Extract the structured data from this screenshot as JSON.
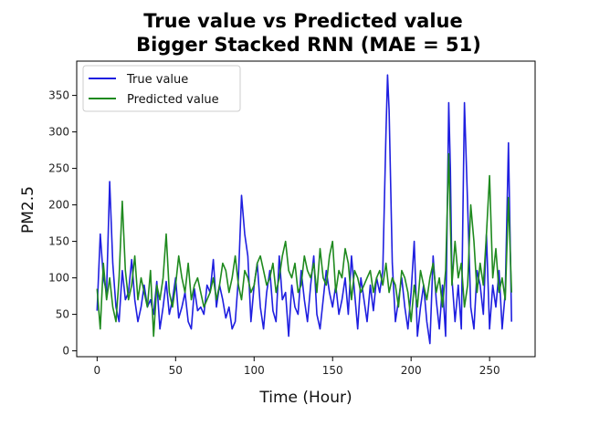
{
  "chart_data": {
    "type": "line",
    "title_line1": "True value vs Predicted value",
    "title_line2": "Bigger Stacked RNN (MAE = 51)",
    "xlabel": "Time (Hour)",
    "ylabel": "PM2.5",
    "xlim": [
      -13,
      279
    ],
    "ylim": [
      -8,
      397
    ],
    "xticks": [
      0,
      50,
      100,
      150,
      200,
      250
    ],
    "yticks": [
      0,
      50,
      100,
      150,
      200,
      250,
      300,
      350
    ],
    "legend_position": "upper-left",
    "series": [
      {
        "name": "True value",
        "color": "#1f1fe0",
        "x": [
          0,
          2,
          4,
          6,
          8,
          10,
          12,
          14,
          16,
          18,
          20,
          22,
          24,
          26,
          28,
          30,
          32,
          34,
          36,
          38,
          40,
          42,
          44,
          46,
          48,
          50,
          52,
          54,
          56,
          58,
          60,
          62,
          64,
          66,
          68,
          70,
          72,
          74,
          76,
          78,
          80,
          82,
          84,
          86,
          88,
          90,
          92,
          94,
          96,
          98,
          100,
          102,
          104,
          106,
          108,
          110,
          112,
          114,
          116,
          118,
          120,
          122,
          124,
          126,
          128,
          130,
          132,
          134,
          136,
          138,
          140,
          142,
          144,
          146,
          148,
          150,
          152,
          154,
          156,
          158,
          160,
          162,
          164,
          166,
          168,
          170,
          172,
          174,
          176,
          178,
          180,
          182,
          184,
          185,
          186,
          188,
          190,
          192,
          194,
          196,
          198,
          200,
          202,
          204,
          206,
          208,
          210,
          212,
          214,
          216,
          218,
          220,
          222,
          224,
          225,
          226,
          228,
          230,
          232,
          234,
          236,
          238,
          240,
          242,
          244,
          246,
          248,
          250,
          252,
          254,
          256,
          258,
          260,
          262,
          264
        ],
        "y": [
          55,
          160,
          100,
          80,
          232,
          120,
          60,
          40,
          110,
          70,
          80,
          125,
          70,
          40,
          60,
          90,
          60,
          70,
          50,
          95,
          30,
          60,
          95,
          50,
          70,
          100,
          45,
          60,
          80,
          40,
          30,
          85,
          55,
          60,
          50,
          90,
          80,
          125,
          60,
          90,
          70,
          45,
          60,
          30,
          40,
          100,
          213,
          160,
          130,
          40,
          90,
          120,
          60,
          30,
          80,
          110,
          55,
          40,
          130,
          70,
          80,
          20,
          90,
          60,
          50,
          110,
          70,
          40,
          90,
          130,
          50,
          30,
          70,
          110,
          80,
          60,
          90,
          50,
          70,
          100,
          50,
          130,
          80,
          30,
          100,
          70,
          40,
          90,
          55,
          100,
          80,
          110,
          300,
          378,
          330,
          120,
          40,
          70,
          100,
          60,
          30,
          80,
          150,
          20,
          60,
          90,
          40,
          10,
          130,
          70,
          30,
          90,
          20,
          340,
          250,
          100,
          40,
          90,
          30,
          340,
          200,
          60,
          30,
          110,
          90,
          50,
          160,
          30,
          90,
          60,
          110,
          30,
          80,
          285,
          40
        ]
      },
      {
        "name": "Predicted value",
        "color": "#1f8a1f",
        "x": [
          0,
          2,
          4,
          6,
          8,
          10,
          12,
          14,
          16,
          18,
          20,
          22,
          24,
          26,
          28,
          30,
          32,
          34,
          36,
          38,
          40,
          42,
          44,
          46,
          48,
          50,
          52,
          54,
          56,
          58,
          60,
          62,
          64,
          66,
          68,
          70,
          72,
          74,
          76,
          78,
          80,
          82,
          84,
          86,
          88,
          90,
          92,
          94,
          96,
          98,
          100,
          102,
          104,
          106,
          108,
          110,
          112,
          114,
          116,
          118,
          120,
          122,
          124,
          126,
          128,
          130,
          132,
          134,
          136,
          138,
          140,
          142,
          144,
          146,
          148,
          150,
          152,
          154,
          156,
          158,
          160,
          162,
          164,
          166,
          168,
          170,
          172,
          174,
          176,
          178,
          180,
          182,
          184,
          186,
          188,
          190,
          192,
          194,
          196,
          198,
          200,
          202,
          204,
          206,
          208,
          210,
          212,
          214,
          216,
          218,
          220,
          222,
          224,
          226,
          228,
          230,
          232,
          234,
          236,
          238,
          240,
          242,
          244,
          246,
          248,
          250,
          252,
          254,
          256,
          258,
          260,
          262,
          264
        ],
        "y": [
          85,
          30,
          120,
          70,
          100,
          60,
          40,
          100,
          205,
          110,
          70,
          90,
          130,
          70,
          100,
          80,
          60,
          110,
          20,
          90,
          70,
          100,
          160,
          80,
          60,
          90,
          130,
          100,
          80,
          120,
          70,
          90,
          100,
          80,
          60,
          70,
          80,
          100,
          70,
          90,
          120,
          110,
          80,
          100,
          130,
          90,
          70,
          110,
          100,
          80,
          90,
          120,
          130,
          110,
          90,
          100,
          120,
          80,
          100,
          130,
          150,
          110,
          100,
          120,
          80,
          90,
          130,
          110,
          100,
          120,
          80,
          140,
          100,
          90,
          130,
          150,
          80,
          110,
          100,
          140,
          120,
          70,
          110,
          100,
          80,
          90,
          100,
          110,
          80,
          100,
          110,
          90,
          120,
          80,
          100,
          90,
          60,
          110,
          100,
          80,
          40,
          90,
          60,
          110,
          90,
          70,
          100,
          120,
          80,
          100,
          60,
          110,
          270,
          90,
          150,
          100,
          120,
          60,
          90,
          200,
          150,
          80,
          120,
          90,
          160,
          240,
          100,
          140,
          80,
          100,
          70,
          210,
          80
        ]
      }
    ]
  }
}
